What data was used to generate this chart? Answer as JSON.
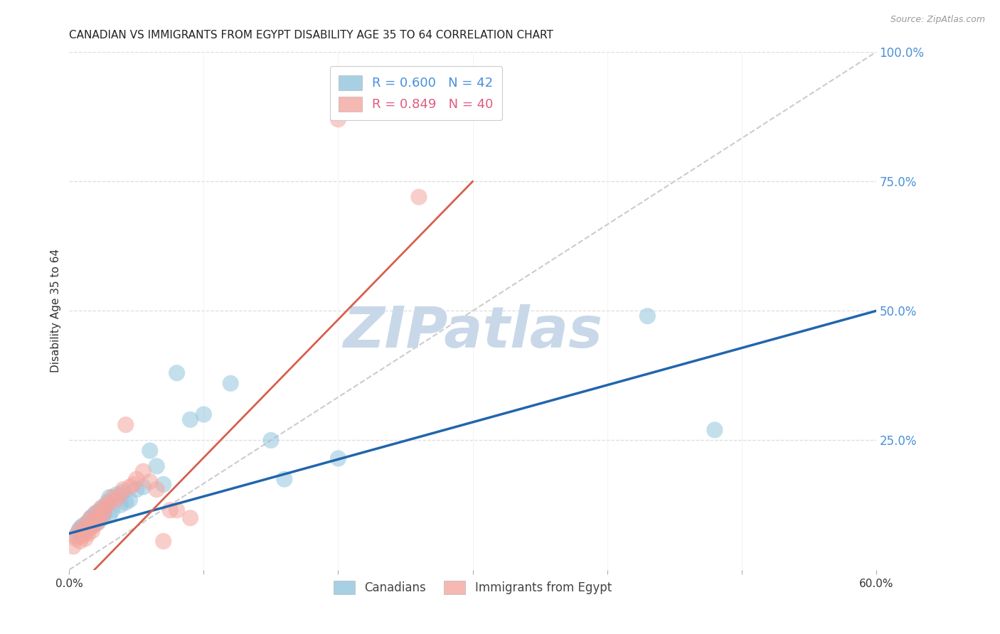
{
  "title": "CANADIAN VS IMMIGRANTS FROM EGYPT DISABILITY AGE 35 TO 64 CORRELATION CHART",
  "source": "Source: ZipAtlas.com",
  "ylabel": "Disability Age 35 to 64",
  "xlim": [
    0.0,
    0.6
  ],
  "ylim": [
    0.0,
    1.0
  ],
  "canadians_R": 0.6,
  "canadians_N": 42,
  "egypt_R": 0.849,
  "egypt_N": 40,
  "canadians_color": "#92c5de",
  "egypt_color": "#f4a6a0",
  "canadians_line_color": "#2166ac",
  "egypt_line_color": "#d6604d",
  "diagonal_color": "#cccccc",
  "background_color": "#ffffff",
  "grid_color": "#dddddd",
  "canadians_scatter": [
    [
      0.005,
      0.065
    ],
    [
      0.007,
      0.075
    ],
    [
      0.008,
      0.08
    ],
    [
      0.01,
      0.07
    ],
    [
      0.01,
      0.085
    ],
    [
      0.012,
      0.075
    ],
    [
      0.013,
      0.09
    ],
    [
      0.015,
      0.08
    ],
    [
      0.015,
      0.095
    ],
    [
      0.016,
      0.1
    ],
    [
      0.017,
      0.085
    ],
    [
      0.018,
      0.105
    ],
    [
      0.02,
      0.09
    ],
    [
      0.02,
      0.11
    ],
    [
      0.022,
      0.095
    ],
    [
      0.023,
      0.115
    ],
    [
      0.025,
      0.1
    ],
    [
      0.025,
      0.12
    ],
    [
      0.026,
      0.11
    ],
    [
      0.028,
      0.13
    ],
    [
      0.03,
      0.105
    ],
    [
      0.03,
      0.14
    ],
    [
      0.032,
      0.115
    ],
    [
      0.035,
      0.145
    ],
    [
      0.038,
      0.125
    ],
    [
      0.04,
      0.15
    ],
    [
      0.042,
      0.13
    ],
    [
      0.045,
      0.135
    ],
    [
      0.05,
      0.155
    ],
    [
      0.055,
      0.16
    ],
    [
      0.06,
      0.23
    ],
    [
      0.065,
      0.2
    ],
    [
      0.07,
      0.165
    ],
    [
      0.08,
      0.38
    ],
    [
      0.09,
      0.29
    ],
    [
      0.1,
      0.3
    ],
    [
      0.12,
      0.36
    ],
    [
      0.15,
      0.25
    ],
    [
      0.16,
      0.175
    ],
    [
      0.2,
      0.215
    ],
    [
      0.43,
      0.49
    ],
    [
      0.48,
      0.27
    ]
  ],
  "egypt_scatter": [
    [
      0.003,
      0.045
    ],
    [
      0.005,
      0.06
    ],
    [
      0.006,
      0.07
    ],
    [
      0.008,
      0.055
    ],
    [
      0.009,
      0.08
    ],
    [
      0.01,
      0.065
    ],
    [
      0.011,
      0.075
    ],
    [
      0.012,
      0.06
    ],
    [
      0.013,
      0.09
    ],
    [
      0.014,
      0.07
    ],
    [
      0.015,
      0.08
    ],
    [
      0.016,
      0.1
    ],
    [
      0.017,
      0.075
    ],
    [
      0.018,
      0.085
    ],
    [
      0.019,
      0.095
    ],
    [
      0.02,
      0.11
    ],
    [
      0.021,
      0.09
    ],
    [
      0.022,
      0.1
    ],
    [
      0.024,
      0.12
    ],
    [
      0.025,
      0.105
    ],
    [
      0.026,
      0.115
    ],
    [
      0.028,
      0.125
    ],
    [
      0.03,
      0.13
    ],
    [
      0.032,
      0.14
    ],
    [
      0.035,
      0.135
    ],
    [
      0.038,
      0.145
    ],
    [
      0.04,
      0.155
    ],
    [
      0.042,
      0.28
    ],
    [
      0.045,
      0.16
    ],
    [
      0.048,
      0.165
    ],
    [
      0.05,
      0.175
    ],
    [
      0.055,
      0.19
    ],
    [
      0.06,
      0.17
    ],
    [
      0.065,
      0.155
    ],
    [
      0.07,
      0.055
    ],
    [
      0.075,
      0.115
    ],
    [
      0.08,
      0.115
    ],
    [
      0.09,
      0.1
    ],
    [
      0.2,
      0.87
    ],
    [
      0.26,
      0.72
    ]
  ],
  "watermark": "ZIPatlas",
  "watermark_color": "#c8d8e8",
  "legend_canadians_label": "Canadians",
  "legend_egypt_label": "Immigrants from Egypt",
  "title_fontsize": 11,
  "axis_label_fontsize": 10,
  "tick_fontsize": 11,
  "legend_fontsize": 13,
  "right_tick_color": "#4a90d9",
  "legend_label_color_canadians": "#4a90d9",
  "legend_label_color_egypt": "#e05c7e"
}
